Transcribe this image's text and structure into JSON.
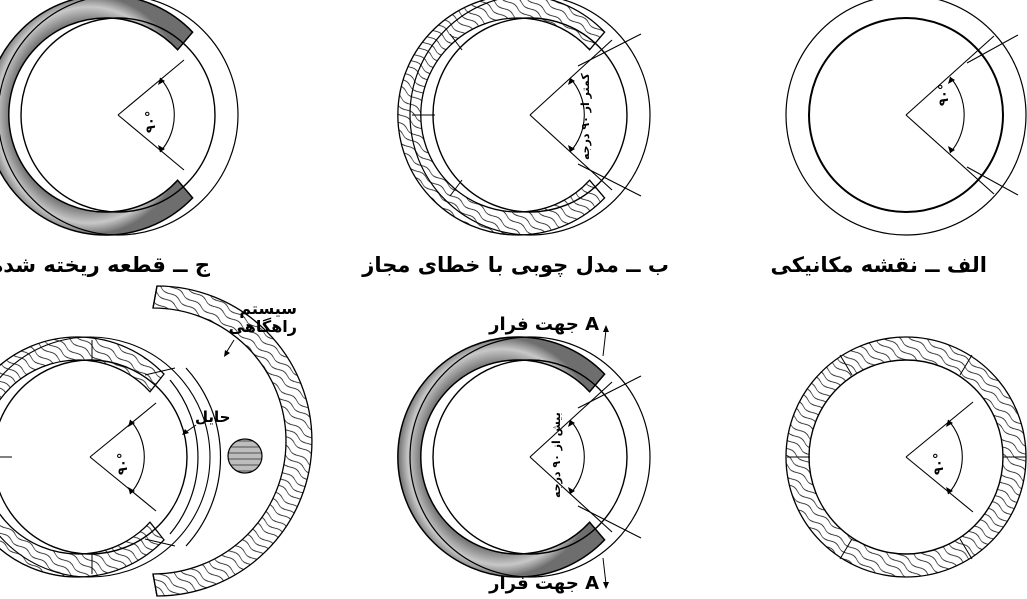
{
  "captions": {
    "mechanical": "الف ــ نقشه مکانیکی",
    "wood_model": "ب ــ مدل چوبی با خطای مجاز",
    "cast_part": "ج ــ قطعه ریخته شده"
  },
  "angle_labels": {
    "ninety": "۹۰°",
    "less_than_90": "کمتر از ۹۰ درجه",
    "more_than_90": "بیش از ۹۰ درجه"
  },
  "annotations": {
    "escape_top": "A جهت فرار",
    "escape_bottom": "A جهت فرار",
    "guide_system_line1": "سیستم",
    "guide_system_line2": "راهگاهی",
    "barrier": "حایل"
  }
}
